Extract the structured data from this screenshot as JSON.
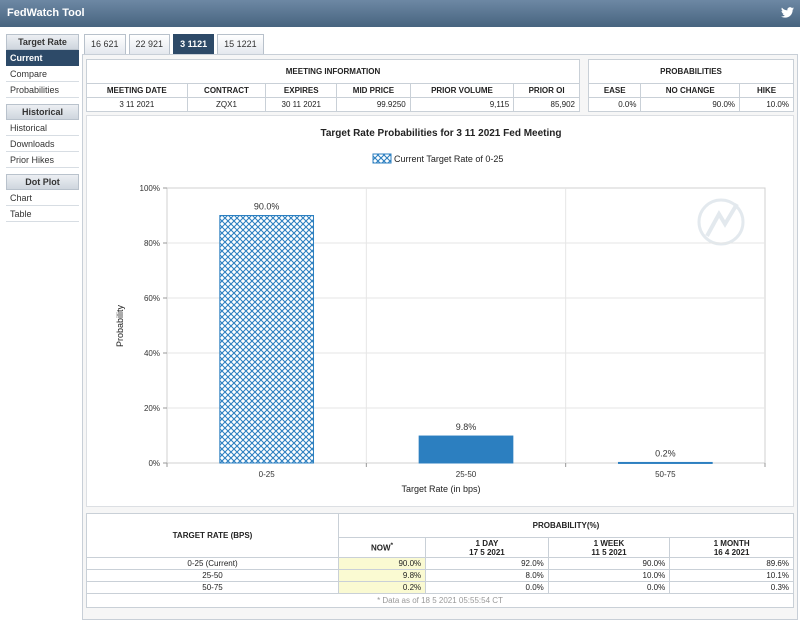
{
  "app": {
    "title": "FedWatch Tool",
    "social_icon": "twitter-icon"
  },
  "sidebar": [
    {
      "header": "Target Rate",
      "items": [
        {
          "label": "Current",
          "active": true
        },
        {
          "label": "Compare",
          "active": false
        },
        {
          "label": "Probabilities",
          "active": false
        }
      ]
    },
    {
      "header": "Historical",
      "items": [
        {
          "label": "Historical",
          "active": false
        },
        {
          "label": "Downloads",
          "active": false
        },
        {
          "label": "Prior Hikes",
          "active": false
        }
      ]
    },
    {
      "header": "Dot Plot",
      "items": [
        {
          "label": "Chart",
          "active": false
        },
        {
          "label": "Table",
          "active": false
        }
      ]
    }
  ],
  "tabs": [
    {
      "label": "16 621",
      "active": false
    },
    {
      "label": "22 921",
      "active": false
    },
    {
      "label": "3 1121",
      "active": true
    },
    {
      "label": "15 1221",
      "active": false
    }
  ],
  "meeting_info": {
    "title": "MEETING INFORMATION",
    "headers": [
      "MEETING DATE",
      "CONTRACT",
      "EXPIRES",
      "MID PRICE",
      "PRIOR VOLUME",
      "PRIOR OI"
    ],
    "values": [
      "3 11 2021",
      "ZQX1",
      "30 11 2021",
      "99.9250",
      "9,115",
      "85,902"
    ]
  },
  "probabilities": {
    "title": "PROBABILITIES",
    "headers": [
      "EASE",
      "NO CHANGE",
      "HIKE"
    ],
    "values": [
      "0.0%",
      "90.0%",
      "10.0%"
    ]
  },
  "chart_data": {
    "type": "bar",
    "title": "Target Rate Probabilities for 3 11 2021 Fed Meeting",
    "legend": "Current Target Rate of 0-25",
    "legend_position": "top-center",
    "xlabel": "Target Rate (in bps)",
    "ylabel": "Probability",
    "categories": [
      "0-25",
      "25-50",
      "50-75"
    ],
    "values": [
      90.0,
      9.8,
      0.2
    ],
    "data_labels": [
      "90.0%",
      "9.8%",
      "0.2%"
    ],
    "current_index": 0,
    "ylim": [
      0,
      100
    ],
    "yticks": [
      0,
      20,
      40,
      60,
      80,
      100
    ],
    "ytick_labels": [
      "0%",
      "20%",
      "40%",
      "60%",
      "80%",
      "100%"
    ],
    "grid": true,
    "colors": {
      "bar": "#2c7fc0",
      "hatch": "#2c7fc0"
    }
  },
  "bottom_table": {
    "rate_header": "TARGET RATE (BPS)",
    "prob_header": "PROBABILITY(%)",
    "columns": [
      {
        "label": "NOW",
        "sub": "",
        "mark": "*"
      },
      {
        "label": "1 DAY",
        "sub": "17 5 2021",
        "mark": ""
      },
      {
        "label": "1 WEEK",
        "sub": "11 5 2021",
        "mark": ""
      },
      {
        "label": "1 MONTH",
        "sub": "16 4 2021",
        "mark": ""
      }
    ],
    "rows": [
      {
        "rate": "0-25 (Current)",
        "values": [
          "90.0%",
          "92.0%",
          "90.0%",
          "89.6%"
        ]
      },
      {
        "rate": "25-50",
        "values": [
          "9.8%",
          "8.0%",
          "10.0%",
          "10.1%"
        ]
      },
      {
        "rate": "50-75",
        "values": [
          "0.2%",
          "0.0%",
          "0.0%",
          "0.3%"
        ]
      }
    ],
    "footnote": "* Data as of 18 5 2021 05:55:54 CT"
  }
}
